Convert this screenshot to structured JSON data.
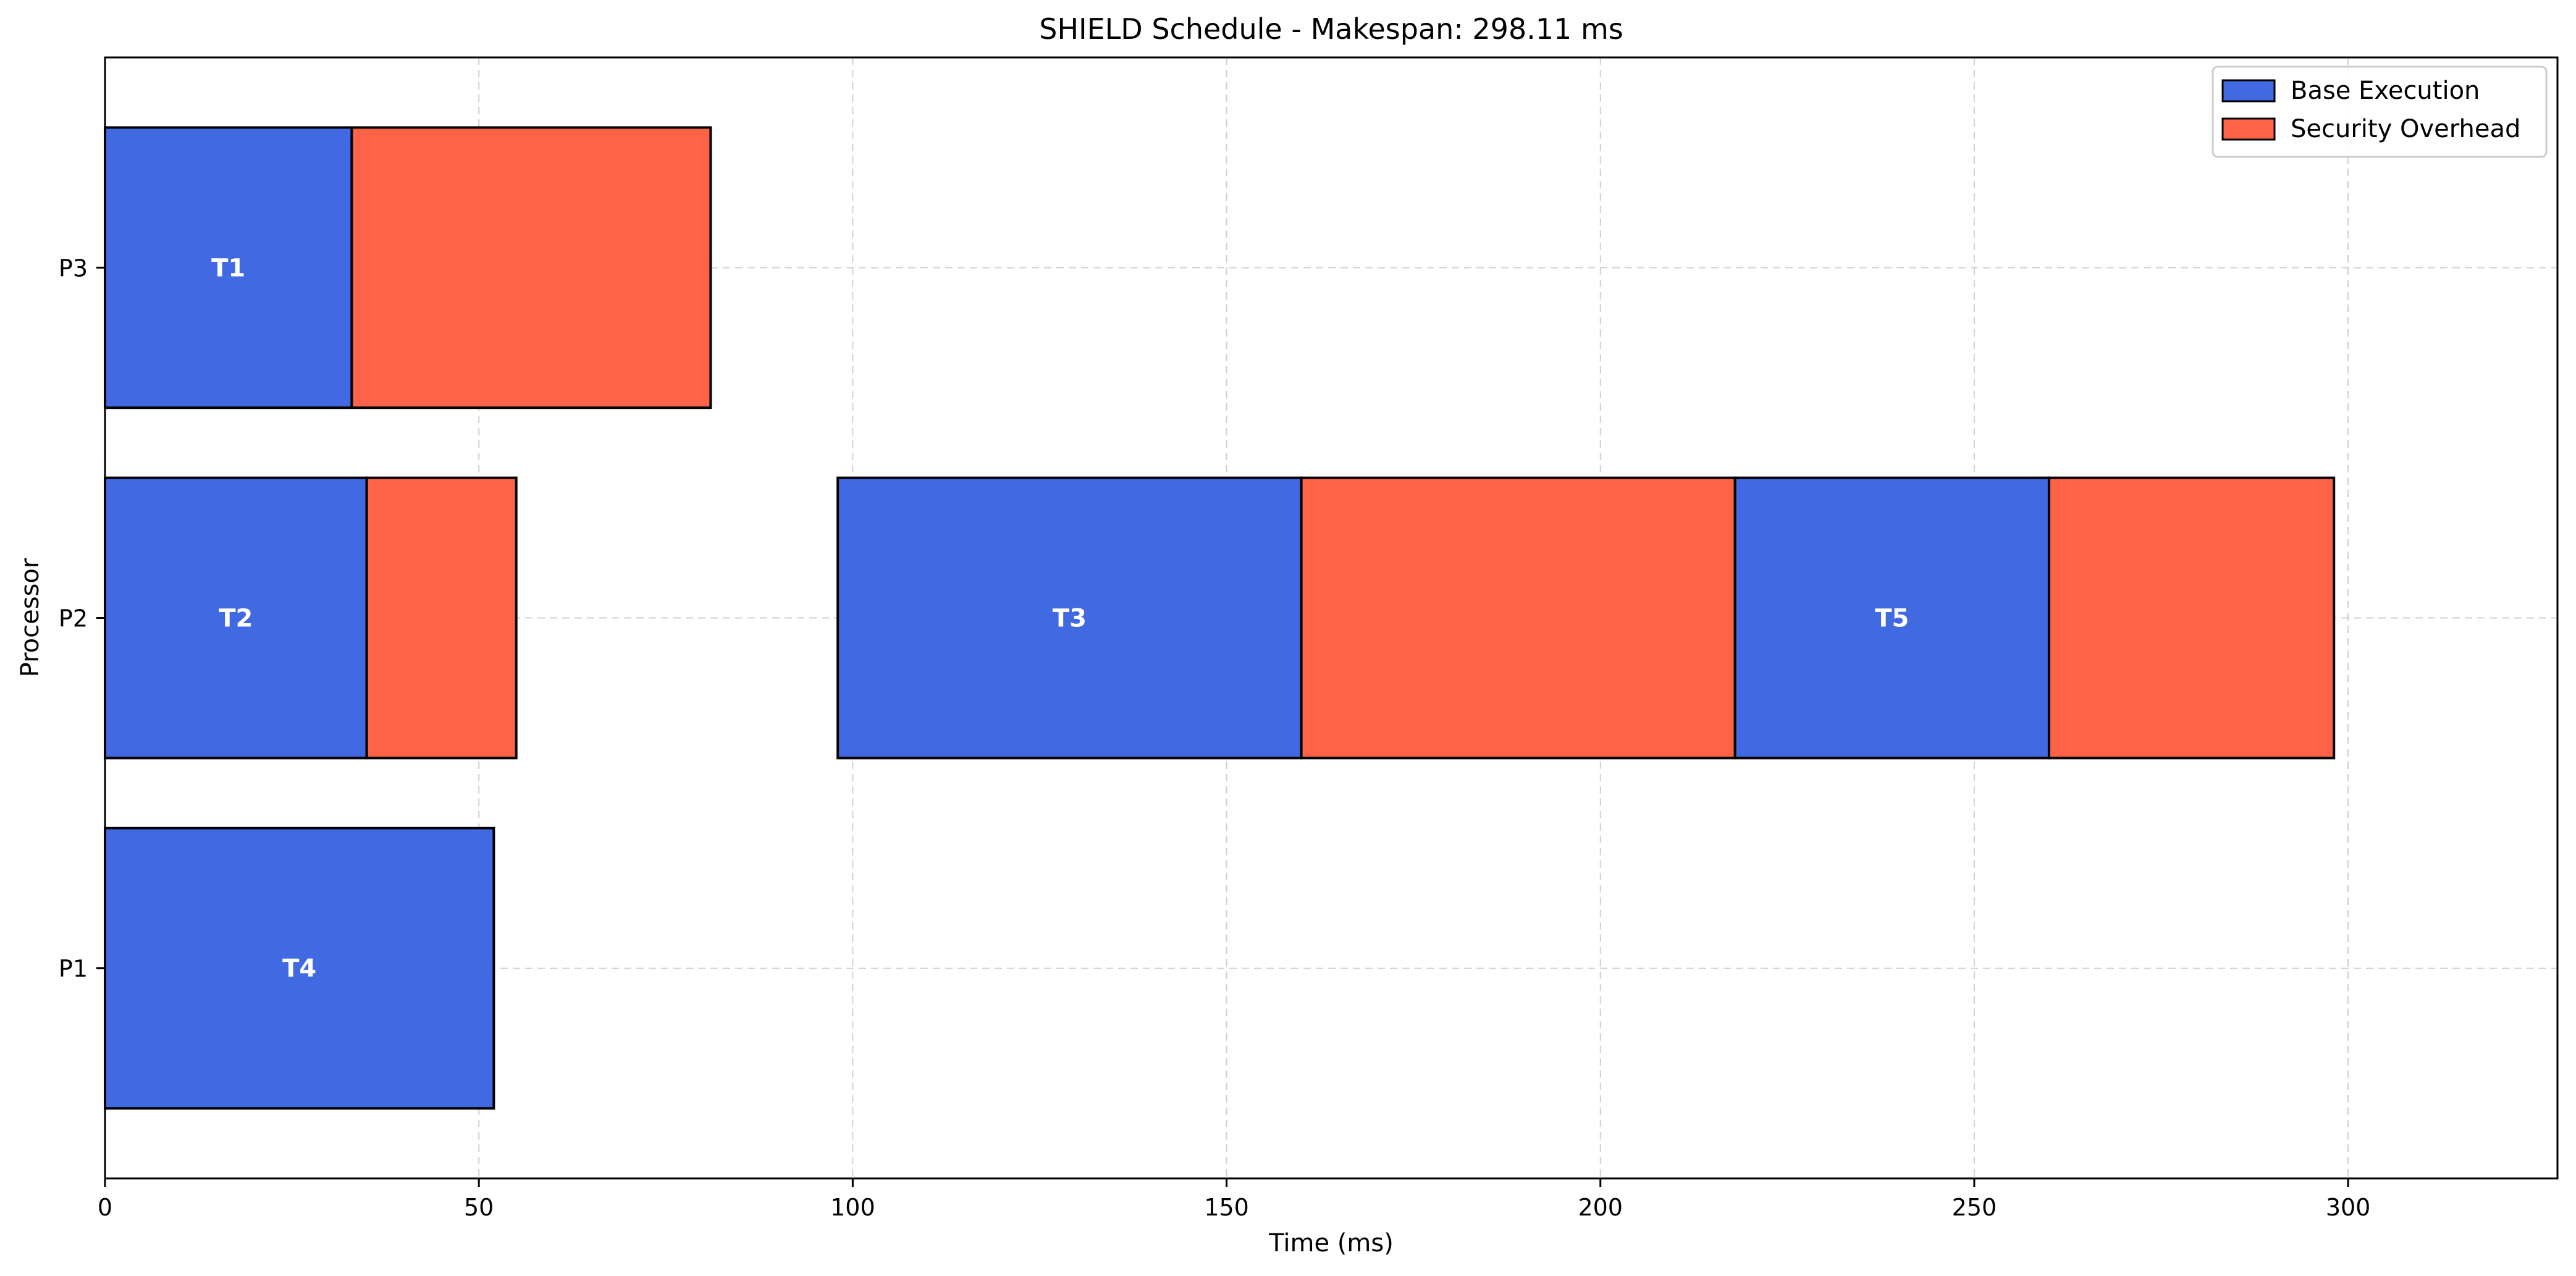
{
  "chart_data": {
    "type": "bar",
    "orientation": "horizontal",
    "title": "SHIELD Schedule - Makespan: 298.11 ms",
    "xlabel": "Time (ms)",
    "ylabel": "Processor",
    "xlim": [
      0,
      328
    ],
    "x_ticks": [
      0,
      50,
      100,
      150,
      200,
      250,
      300
    ],
    "categories": [
      "P1",
      "P2",
      "P3"
    ],
    "grid": true,
    "legend_position": "top-right",
    "legend": [
      {
        "name": "Base Execution",
        "color": "#4169E1"
      },
      {
        "name": "Security Overhead",
        "color": "#FF6347"
      }
    ],
    "tasks": [
      {
        "task": "T1",
        "processor": "P3",
        "start": 0,
        "base": 33,
        "overhead": 48
      },
      {
        "task": "T2",
        "processor": "P2",
        "start": 0,
        "base": 35,
        "overhead": 20
      },
      {
        "task": "T3",
        "processor": "P2",
        "start": 98,
        "base": 62,
        "overhead": 58
      },
      {
        "task": "T5",
        "processor": "P2",
        "start": 218,
        "base": 42,
        "overhead": 38.11
      },
      {
        "task": "T4",
        "processor": "P1",
        "start": 0,
        "base": 52,
        "overhead": 0
      }
    ]
  }
}
